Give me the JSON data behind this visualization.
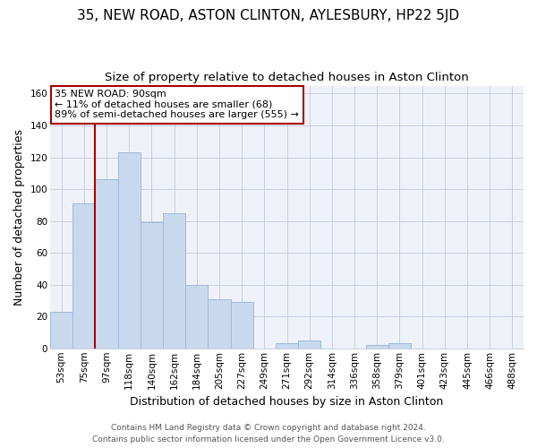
{
  "title": "35, NEW ROAD, ASTON CLINTON, AYLESBURY, HP22 5JD",
  "subtitle": "Size of property relative to detached houses in Aston Clinton",
  "xlabel": "Distribution of detached houses by size in Aston Clinton",
  "ylabel": "Number of detached properties",
  "bar_labels": [
    "53sqm",
    "75sqm",
    "97sqm",
    "118sqm",
    "140sqm",
    "162sqm",
    "184sqm",
    "205sqm",
    "227sqm",
    "249sqm",
    "271sqm",
    "292sqm",
    "314sqm",
    "336sqm",
    "358sqm",
    "379sqm",
    "401sqm",
    "423sqm",
    "445sqm",
    "466sqm",
    "488sqm"
  ],
  "bar_values": [
    23,
    91,
    106,
    123,
    79,
    85,
    40,
    31,
    29,
    0,
    3,
    5,
    0,
    0,
    2,
    3,
    0,
    0,
    0,
    0,
    0
  ],
  "bar_color": "#c8d9ee",
  "bar_edge_color": "#a0b8d8",
  "vline_color": "#aa0000",
  "annotation_text": "35 NEW ROAD: 90sqm\n← 11% of detached houses are smaller (68)\n89% of semi-detached houses are larger (555) →",
  "annotation_box_color": "#ffffff",
  "annotation_box_edge": "#aa0000",
  "ylim": [
    0,
    165
  ],
  "yticks": [
    0,
    20,
    40,
    60,
    80,
    100,
    120,
    140,
    160
  ],
  "footer_line1": "Contains HM Land Registry data © Crown copyright and database right 2024.",
  "footer_line2": "Contains public sector information licensed under the Open Government Licence v3.0.",
  "title_fontsize": 11,
  "subtitle_fontsize": 9.5,
  "axis_label_fontsize": 9,
  "tick_fontsize": 7.5,
  "annotation_fontsize": 8,
  "footer_fontsize": 6.5,
  "bg_color": "#eef2f8"
}
